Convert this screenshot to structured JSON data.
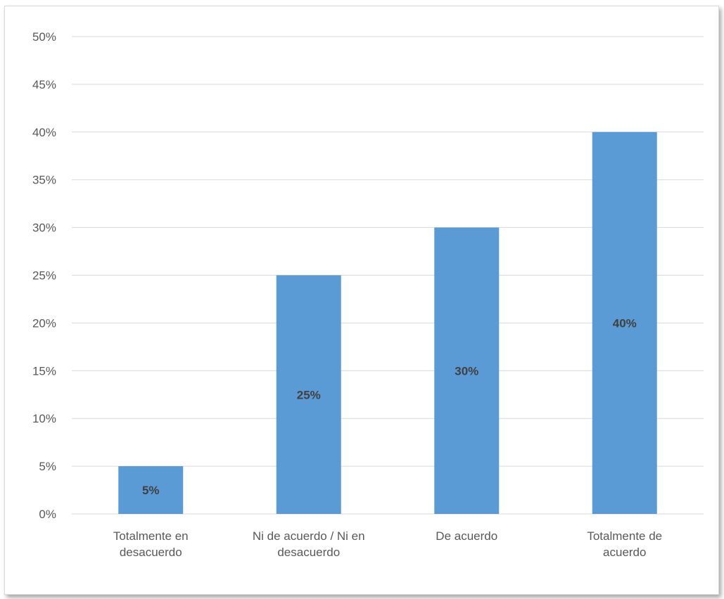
{
  "chart_data": {
    "type": "bar",
    "title": "",
    "xlabel": "",
    "ylabel": "",
    "ylim": [
      0,
      50
    ],
    "ytick_step": 5,
    "ytick_suffix": "%",
    "grid": true,
    "legend": "none",
    "bar_color": "#5b9bd5",
    "grid_color": "#d9d9d9",
    "categories": [
      [
        "Totalmente en",
        "desacuerdo"
      ],
      [
        "Ni de acuerdo / Ni en",
        "desacuerdo"
      ],
      [
        "De acuerdo"
      ],
      [
        "Totalmente de",
        "acuerdo"
      ]
    ],
    "values": [
      5,
      25,
      30,
      40
    ],
    "data_labels": [
      "5%",
      "25%",
      "30%",
      "40%"
    ]
  }
}
